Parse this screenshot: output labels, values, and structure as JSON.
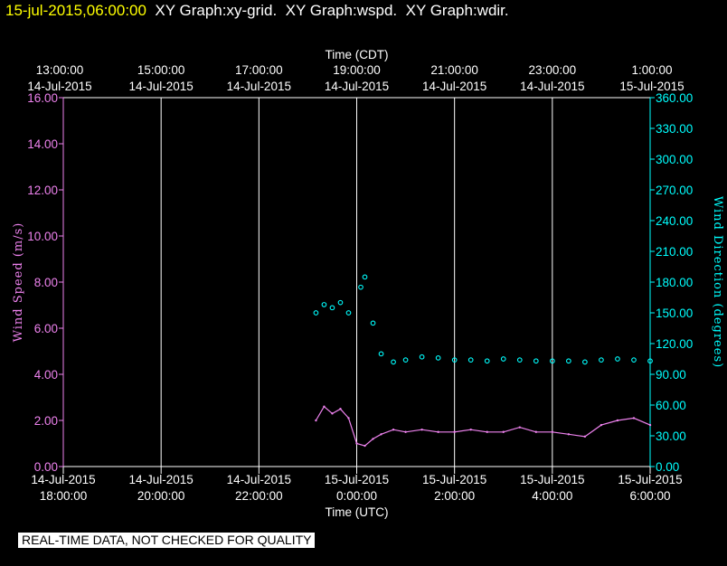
{
  "header": {
    "timestamp": "15-jul-2015,06:00:00",
    "graph_labels": [
      "XY Graph:xy-grid.",
      "XY Graph:wspd.",
      "XY Graph:wdir."
    ]
  },
  "notice": "REAL-TIME DATA, NOT CHECKED FOR QUALITY",
  "colors": {
    "speed": "#ee82ee",
    "direction": "#00ffff",
    "grid": "#ffffff",
    "title": "#ffff00"
  },
  "chart_data": {
    "type": "scatter",
    "title": "",
    "top_axis": {
      "label": "Time (CDT)",
      "ticks": [
        [
          "13:00:00",
          "14-Jul-2015"
        ],
        [
          "15:00:00",
          "14-Jul-2015"
        ],
        [
          "17:00:00",
          "14-Jul-2015"
        ],
        [
          "19:00:00",
          "14-Jul-2015"
        ],
        [
          "21:00:00",
          "14-Jul-2015"
        ],
        [
          "23:00:00",
          "14-Jul-2015"
        ],
        [
          "1:00:00",
          "15-Jul-2015"
        ]
      ]
    },
    "bottom_axis": {
      "label": "Time (UTC)",
      "ticks": [
        [
          "14-Jul-2015",
          "18:00:00"
        ],
        [
          "14-Jul-2015",
          "20:00:00"
        ],
        [
          "14-Jul-2015",
          "22:00:00"
        ],
        [
          "15-Jul-2015",
          "0:00:00"
        ],
        [
          "15-Jul-2015",
          "2:00:00"
        ],
        [
          "15-Jul-2015",
          "4:00:00"
        ],
        [
          "15-Jul-2015",
          "6:00:00"
        ]
      ],
      "range_utc": [
        "2015-07-14 18:00",
        "2015-07-15 06:00"
      ]
    },
    "left_axis": {
      "label": "Wind Speed (m/s)",
      "ylim": [
        0,
        16
      ],
      "ticks": [
        "0.00",
        "2.00",
        "4.00",
        "6.00",
        "8.00",
        "10.00",
        "12.00",
        "14.00",
        "16.00"
      ]
    },
    "right_axis": {
      "label": "Wind Direction (degrees)",
      "ylim": [
        0,
        360
      ],
      "ticks": [
        "0.00",
        "30.00",
        "60.00",
        "90.00",
        "120.00",
        "150.00",
        "180.00",
        "210.00",
        "240.00",
        "270.00",
        "300.00",
        "330.00",
        "360.00"
      ]
    },
    "grid": "vertical lines at each 2-hour tick",
    "series": [
      {
        "name": "",
        "type": "line",
        "axis": "left",
        "x_time_utc": [
          "2015-07-14 23:10",
          "2015-07-14 23:20",
          "2015-07-14 23:30",
          "2015-07-14 23:40",
          "2015-07-14 23:50",
          "2015-07-15 00:00",
          "2015-07-15 00:10",
          "2015-07-15 00:20",
          "2015-07-15 00:30",
          "2015-07-15 00:45",
          "2015-07-15 01:00",
          "2015-07-15 01:20",
          "2015-07-15 01:40",
          "2015-07-15 02:00",
          "2015-07-15 02:20",
          "2015-07-15 02:40",
          "2015-07-15 03:00",
          "2015-07-15 03:20",
          "2015-07-15 03:40",
          "2015-07-15 04:00",
          "2015-07-15 04:20",
          "2015-07-15 04:40",
          "2015-07-15 05:00",
          "2015-07-15 05:20",
          "2015-07-15 05:40",
          "2015-07-15 06:00"
        ],
        "values": [
          2.0,
          2.6,
          2.3,
          2.5,
          2.1,
          1.0,
          0.9,
          1.2,
          1.4,
          1.6,
          1.5,
          1.6,
          1.5,
          1.5,
          1.6,
          1.5,
          1.5,
          1.7,
          1.5,
          1.5,
          1.4,
          1.3,
          1.8,
          2.0,
          2.1,
          1.8
        ]
      },
      {
        "name": "",
        "type": "scatter",
        "axis": "right",
        "x_time_utc": [
          "2015-07-14 23:10",
          "2015-07-14 23:20",
          "2015-07-14 23:30",
          "2015-07-14 23:40",
          "2015-07-14 23:50",
          "2015-07-15 00:05",
          "2015-07-15 00:10",
          "2015-07-15 00:20",
          "2015-07-15 00:30",
          "2015-07-15 00:45",
          "2015-07-15 01:00",
          "2015-07-15 01:20",
          "2015-07-15 01:40",
          "2015-07-15 02:00",
          "2015-07-15 02:20",
          "2015-07-15 02:40",
          "2015-07-15 03:00",
          "2015-07-15 03:20",
          "2015-07-15 03:40",
          "2015-07-15 04:00",
          "2015-07-15 04:20",
          "2015-07-15 04:40",
          "2015-07-15 05:00",
          "2015-07-15 05:20",
          "2015-07-15 05:40",
          "2015-07-15 06:00"
        ],
        "values": [
          150,
          158,
          155,
          160,
          150,
          175,
          185,
          140,
          110,
          102,
          104,
          107,
          106,
          104,
          104,
          103,
          105,
          104,
          103,
          103,
          103,
          102,
          104,
          105,
          104,
          103
        ]
      }
    ]
  }
}
